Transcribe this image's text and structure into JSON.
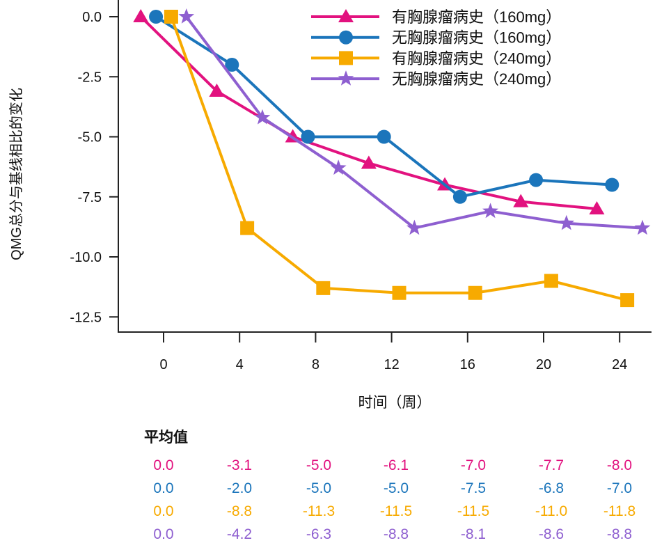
{
  "chart_data": {
    "type": "line",
    "title": "",
    "xlabel": "时间（周）",
    "ylabel": "QMG总分与基线相比的变化",
    "x": [
      0,
      4,
      8,
      12,
      16,
      20,
      24
    ],
    "x_ticks": [
      "0",
      "4",
      "8",
      "12",
      "16",
      "20",
      "24"
    ],
    "y_ticks": [
      "0.0",
      "-2.5",
      "-5.0",
      "-7.5",
      "-10.0",
      "-12.5"
    ],
    "y_tick_values": [
      0,
      -2.5,
      -5,
      -7.5,
      -10,
      -12.5
    ],
    "ylim": [
      -13.2,
      0.7
    ],
    "xlim": [
      -1.9,
      25.5
    ],
    "grid": false,
    "legend_position": "top-right",
    "series": [
      {
        "name": "有胸腺瘤病史（160mg）",
        "color": "#E2127F",
        "marker": "triangle",
        "x_offset": -1.2,
        "values": [
          0.0,
          -3.1,
          -5.0,
          -6.1,
          -7.0,
          -7.7,
          -8.0
        ]
      },
      {
        "name": "无胸腺瘤病史（160mg）",
        "color": "#1B75BB",
        "marker": "circle",
        "x_offset": -0.4,
        "values": [
          0.0,
          -2.0,
          -5.0,
          -5.0,
          -7.5,
          -6.8,
          -7.0
        ]
      },
      {
        "name": "有胸腺瘤病史（240mg）",
        "color": "#F7AA00",
        "marker": "square",
        "x_offset": 0.4,
        "values": [
          0.0,
          -8.8,
          -11.3,
          -11.5,
          -11.5,
          -11.0,
          -11.8
        ]
      },
      {
        "name": "无胸腺瘤病史（240mg）",
        "color": "#8E5FD0",
        "marker": "star",
        "x_offset": 1.2,
        "values": [
          0.0,
          -4.2,
          -6.3,
          -8.8,
          -8.1,
          -8.6,
          -8.8
        ]
      }
    ],
    "table": {
      "heading": "平均值",
      "rows": [
        [
          "0.0",
          "-3.1",
          "-5.0",
          "-6.1",
          "-7.0",
          "-7.7",
          "-8.0"
        ],
        [
          "0.0",
          "-2.0",
          "-5.0",
          "-5.0",
          "-7.5",
          "-6.8",
          "-7.0"
        ],
        [
          "0.0",
          "-8.8",
          "-11.3",
          "-11.5",
          "-11.5",
          "-11.0",
          "-11.8"
        ],
        [
          "0.0",
          "-4.2",
          "-6.3",
          "-8.8",
          "-8.1",
          "-8.6",
          "-8.8"
        ]
      ]
    }
  }
}
